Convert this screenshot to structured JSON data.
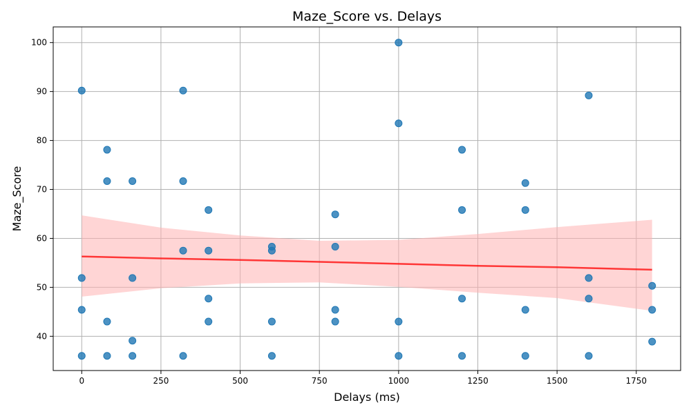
{
  "chart_data": {
    "type": "scatter",
    "title": "Maze_Score vs. Delays",
    "xlabel": "Delays (ms)",
    "ylabel": "Maze_Score",
    "xlim": [
      -90,
      1890
    ],
    "ylim": [
      33,
      103.2
    ],
    "xticks": [
      0,
      250,
      500,
      750,
      1000,
      1250,
      1500,
      1750
    ],
    "yticks": [
      40,
      50,
      60,
      70,
      80,
      90,
      100
    ],
    "grid": true,
    "point_color": "#1f77b4",
    "regression": {
      "line_color": "#ff0000",
      "band_color": "#ffb3b3",
      "x": [
        0,
        250,
        500,
        750,
        1000,
        1250,
        1500,
        1800
      ],
      "y": [
        56.3,
        55.9,
        55.6,
        55.2,
        54.8,
        54.4,
        54.1,
        53.6
      ],
      "lower": [
        48.1,
        49.8,
        50.8,
        51.0,
        50.1,
        48.9,
        47.8,
        45.2
      ],
      "upper": [
        64.7,
        62.2,
        60.6,
        59.5,
        59.7,
        60.9,
        62.3,
        63.8
      ]
    },
    "points": [
      {
        "x": 0,
        "y": 90.2
      },
      {
        "x": 0,
        "y": 51.9
      },
      {
        "x": 0,
        "y": 45.4
      },
      {
        "x": 0,
        "y": 36.0
      },
      {
        "x": 80,
        "y": 78.1
      },
      {
        "x": 80,
        "y": 71.7
      },
      {
        "x": 80,
        "y": 43.0
      },
      {
        "x": 80,
        "y": 36.0
      },
      {
        "x": 160,
        "y": 71.7
      },
      {
        "x": 160,
        "y": 51.9
      },
      {
        "x": 160,
        "y": 39.1
      },
      {
        "x": 160,
        "y": 36.0
      },
      {
        "x": 320,
        "y": 90.2
      },
      {
        "x": 320,
        "y": 71.7
      },
      {
        "x": 320,
        "y": 57.5
      },
      {
        "x": 320,
        "y": 36.0
      },
      {
        "x": 400,
        "y": 65.8
      },
      {
        "x": 400,
        "y": 57.5
      },
      {
        "x": 400,
        "y": 47.7
      },
      {
        "x": 400,
        "y": 43.0
      },
      {
        "x": 600,
        "y": 58.3
      },
      {
        "x": 600,
        "y": 57.5
      },
      {
        "x": 600,
        "y": 43.0
      },
      {
        "x": 600,
        "y": 36.0
      },
      {
        "x": 800,
        "y": 64.9
      },
      {
        "x": 800,
        "y": 58.3
      },
      {
        "x": 800,
        "y": 45.4
      },
      {
        "x": 800,
        "y": 43.0
      },
      {
        "x": 1000,
        "y": 100.0
      },
      {
        "x": 1000,
        "y": 83.5
      },
      {
        "x": 1000,
        "y": 43.0
      },
      {
        "x": 1000,
        "y": 36.0
      },
      {
        "x": 1200,
        "y": 78.1
      },
      {
        "x": 1200,
        "y": 65.8
      },
      {
        "x": 1200,
        "y": 47.7
      },
      {
        "x": 1200,
        "y": 36.0
      },
      {
        "x": 1400,
        "y": 71.3
      },
      {
        "x": 1400,
        "y": 65.8
      },
      {
        "x": 1400,
        "y": 45.4
      },
      {
        "x": 1400,
        "y": 36.0
      },
      {
        "x": 1600,
        "y": 89.2
      },
      {
        "x": 1600,
        "y": 51.9
      },
      {
        "x": 1600,
        "y": 47.7
      },
      {
        "x": 1600,
        "y": 36.0
      },
      {
        "x": 1800,
        "y": 50.3
      },
      {
        "x": 1800,
        "y": 45.4
      },
      {
        "x": 1800,
        "y": 38.9
      }
    ]
  }
}
